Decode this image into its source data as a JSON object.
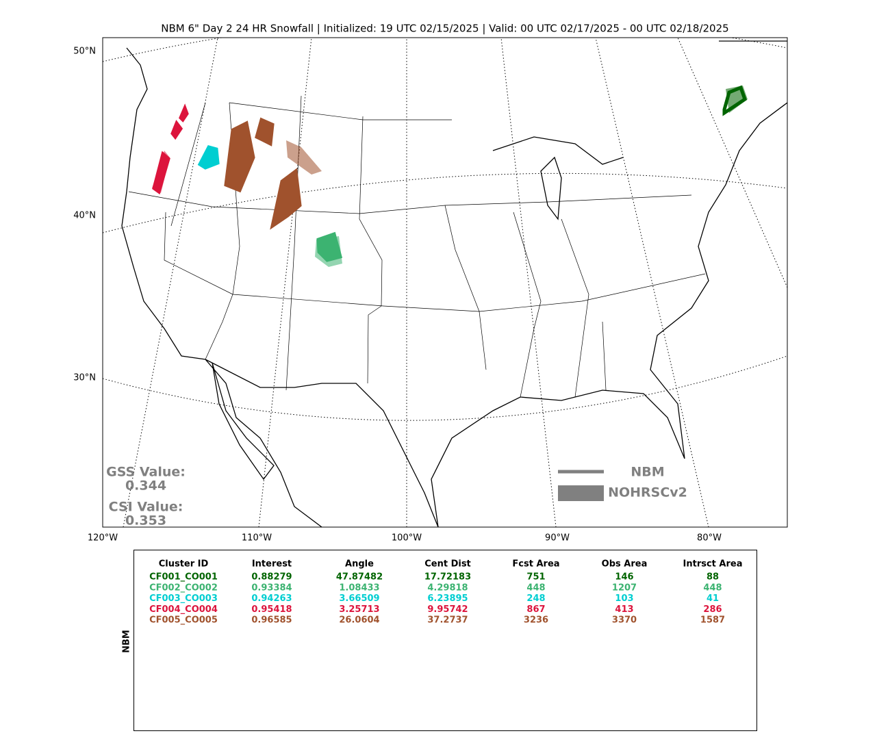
{
  "title": "NBM 6\" Day 2 24 HR Snowfall | Initialized: 19 UTC 02/15/2025 | Valid: 00 UTC 02/17/2025 - 00 UTC 02/18/2025",
  "map": {
    "lat_labels": [
      "50°N",
      "40°N",
      "30°N"
    ],
    "lon_labels": [
      "120°W",
      "110°W",
      "100°W",
      "90°W",
      "80°W"
    ]
  },
  "legend": {
    "entries": [
      "NBM",
      "NOHRSCv2"
    ],
    "color": "#808080"
  },
  "stats": {
    "gss_label": "GSS Value:",
    "gss_value": "0.344",
    "csi_label": "CSI Value:",
    "csi_value": "0.353"
  },
  "table": {
    "side_label": "NBM",
    "header": [
      "Cluster ID",
      "Interest",
      "Angle",
      "Cent Dist",
      "Fcst Area",
      "Obs Area",
      "Intrsct Area"
    ],
    "rows": [
      {
        "color": "#006400",
        "cells": [
          "CF001_CO001",
          "0.88279",
          "47.87482",
          "17.72183",
          "751",
          "146",
          "88"
        ]
      },
      {
        "color": "#3cb371",
        "cells": [
          "CF002_CO002",
          "0.93384",
          "1.08433",
          "4.29818",
          "448",
          "1207",
          "448"
        ]
      },
      {
        "color": "#00ced1",
        "cells": [
          "CF003_CO003",
          "0.94263",
          "3.66509",
          "6.23895",
          "248",
          "103",
          "41"
        ]
      },
      {
        "color": "#dc143c",
        "cells": [
          "CF004_CO004",
          "0.95418",
          "3.25713",
          "9.95742",
          "867",
          "413",
          "286"
        ]
      },
      {
        "color": "#a0522d",
        "cells": [
          "CF005_CO005",
          "0.96585",
          "26.0604",
          "37.2737",
          "3236",
          "3370",
          "1587"
        ]
      }
    ]
  }
}
